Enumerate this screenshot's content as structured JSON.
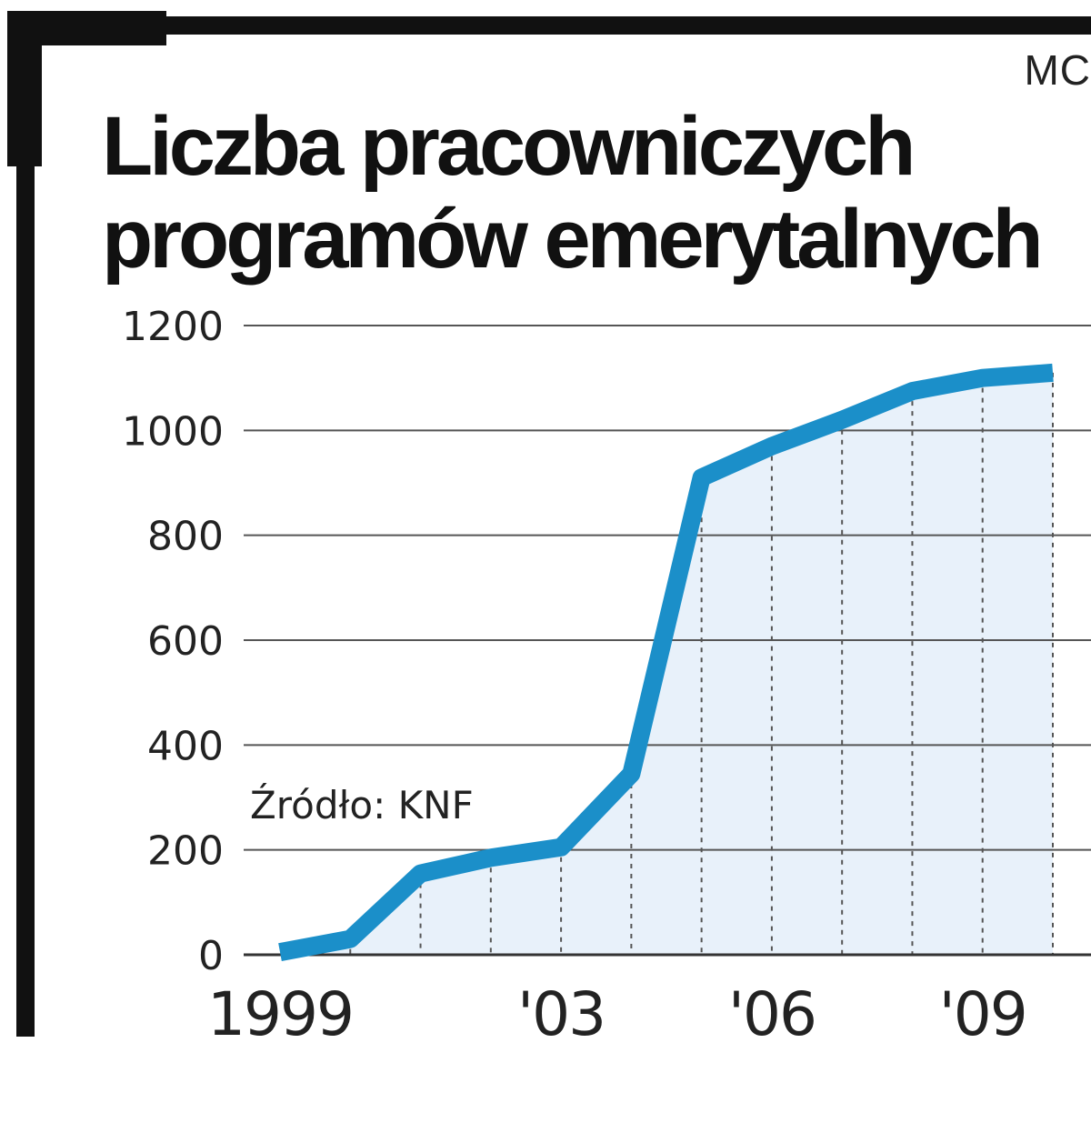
{
  "credit": "MC",
  "chart_data": {
    "type": "area",
    "title_lines": [
      "Liczba pracowniczych",
      "programów emerytalnych"
    ],
    "x": [
      1999,
      2000,
      2001,
      2002,
      2003,
      2004,
      2005,
      2006,
      2007,
      2008,
      2009,
      2010
    ],
    "values": [
      5,
      30,
      155,
      185,
      205,
      345,
      910,
      970,
      1020,
      1075,
      1100,
      1110
    ],
    "ylim": [
      0,
      1200
    ],
    "yticks": [
      0,
      200,
      400,
      600,
      800,
      1000,
      1200
    ],
    "xticks": [
      {
        "x": 1999,
        "label": "1999"
      },
      {
        "x": 2003,
        "label": "'03"
      },
      {
        "x": 2006,
        "label": "'06"
      },
      {
        "x": 2009,
        "label": "'09"
      }
    ],
    "source": "Źródło: KNF",
    "grid": true,
    "line_color": "#1b8fc9",
    "fill_color": "#e8f1fa",
    "grid_color": "#555555"
  }
}
